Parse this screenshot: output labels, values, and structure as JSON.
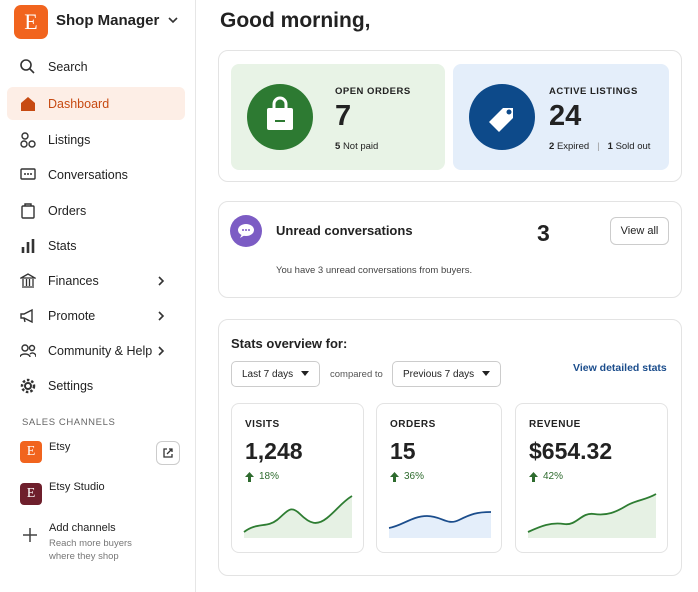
{
  "sidebar": {
    "shop_logo": "E",
    "shop_name": "Shop Manager",
    "nav": [
      "Search",
      "Dashboard",
      "Listings",
      "Conversations",
      "Orders",
      "Stats",
      "Finances",
      "Promote",
      "Community & Help",
      "Settings"
    ],
    "sales_channels_heading": "SALES CHANNELS",
    "channels": [
      {
        "logo": "E",
        "name": "Etsy"
      },
      {
        "logo": "E",
        "name": "Etsy Studio"
      }
    ],
    "add_channels": {
      "title": "Add channels",
      "subtitle": "Reach more buyers where they shop"
    }
  },
  "main": {
    "greeting": "Good morning,",
    "summary": [
      {
        "label": "OPEN ORDERS",
        "value": 7,
        "details": [
          {
            "count": 5,
            "text": "Not paid"
          }
        ]
      },
      {
        "label": "ACTIVE LISTINGS",
        "value": 24,
        "details": [
          {
            "count": 2,
            "text": "Expired"
          },
          {
            "count": 1,
            "text": "Sold out"
          }
        ]
      }
    ],
    "conversations": {
      "title": "Unread conversations",
      "count": 3,
      "button": "View all",
      "message": "You have 3 unread conversations from buyers."
    },
    "stats": {
      "title": "Stats overview for:",
      "period": "Last 7 days",
      "compared_label": "compared to",
      "compare_period": "Previous 7 days",
      "link": "View detailed stats",
      "cards": [
        {
          "label": "VISITS",
          "value": "1,248",
          "change": "18%"
        },
        {
          "label": "ORDERS",
          "value": "15",
          "change": "36%"
        },
        {
          "label": "REVENUE",
          "value": "$654.32",
          "change": "42%"
        }
      ]
    }
  }
}
